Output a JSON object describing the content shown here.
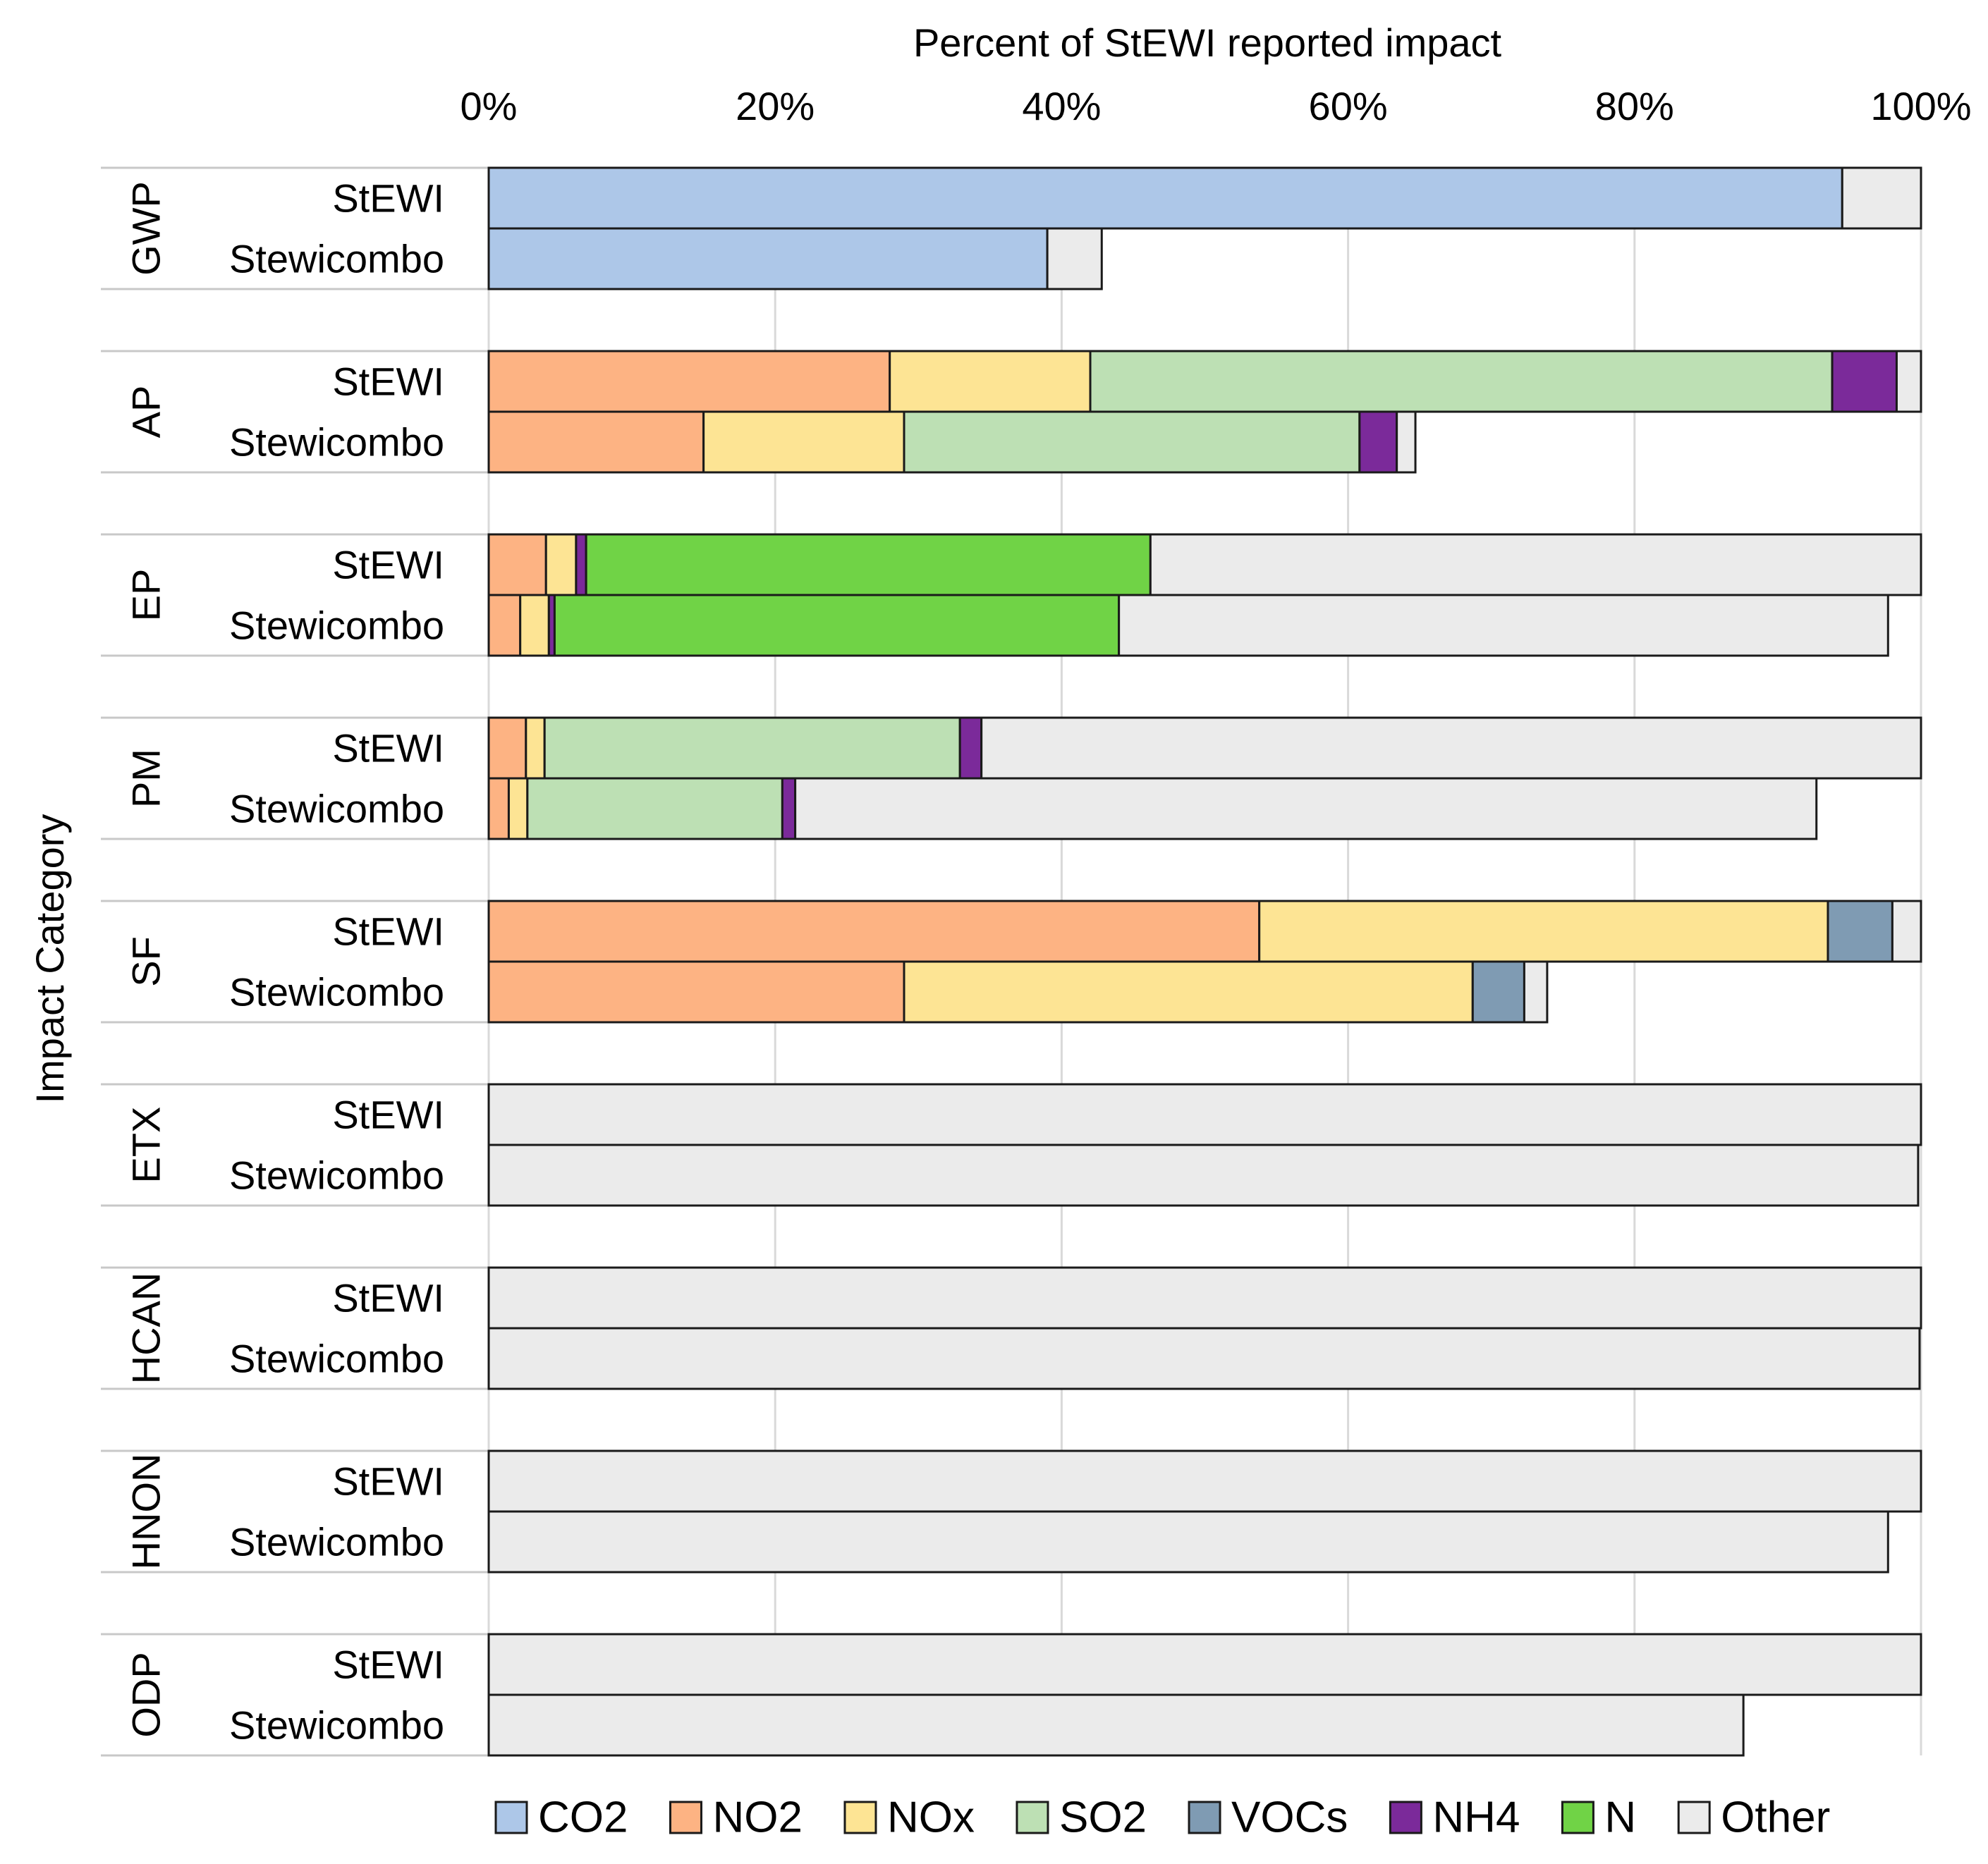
{
  "chart_data": {
    "type": "bar",
    "orientation": "horizontal",
    "stacked": true,
    "title": "",
    "xlabel": "Percent of StEWI reported impact",
    "ylabel": "Impact Category",
    "xlim": [
      0,
      100
    ],
    "x_ticks": [
      "0%",
      "20%",
      "40%",
      "60%",
      "80%",
      "100%"
    ],
    "x_axis_position": "top",
    "legend_position": "bottom",
    "grid": true,
    "series": [
      {
        "name": "CO2",
        "color": "#adc7e8"
      },
      {
        "name": "NO2",
        "color": "#fdb383"
      },
      {
        "name": "NOx",
        "color": "#fde494"
      },
      {
        "name": "SO2",
        "color": "#bde0b4"
      },
      {
        "name": "VOCs",
        "color": "#7f9bb3"
      },
      {
        "name": "NH4",
        "color": "#7b2a9a"
      },
      {
        "name": "N",
        "color": "#70d346"
      },
      {
        "name": "Other",
        "color": "#ebebeb"
      }
    ],
    "groups": [
      {
        "category": "GWP",
        "bars": [
          {
            "label": "StEWI",
            "values": {
              "CO2": 94.5,
              "Other": 5.5
            }
          },
          {
            "label": "Stewicombo",
            "values": {
              "CO2": 39.0,
              "Other": 3.8
            }
          }
        ]
      },
      {
        "category": "AP",
        "bars": [
          {
            "label": "StEWI",
            "values": {
              "NO2": 28.0,
              "NOx": 14.0,
              "SO2": 51.8,
              "NH4": 4.5,
              "Other": 1.7
            }
          },
          {
            "label": "Stewicombo",
            "values": {
              "NO2": 15.0,
              "NOx": 14.0,
              "SO2": 31.8,
              "NH4": 2.6,
              "Other": 1.3
            }
          }
        ]
      },
      {
        "category": "EP",
        "bars": [
          {
            "label": "StEWI",
            "values": {
              "NO2": 4.0,
              "NOx": 2.1,
              "NH4": 0.7,
              "N": 39.4,
              "Other": 53.8
            }
          },
          {
            "label": "Stewicombo",
            "values": {
              "NO2": 2.2,
              "NOx": 2.0,
              "NH4": 0.4,
              "N": 39.4,
              "Other": 53.7
            }
          }
        ]
      },
      {
        "category": "PM",
        "bars": [
          {
            "label": "StEWI",
            "values": {
              "NO2": 2.6,
              "NOx": 1.3,
              "SO2": 29.0,
              "NH4": 1.5,
              "Other": 65.6
            }
          },
          {
            "label": "Stewicombo",
            "values": {
              "NO2": 1.4,
              "NOx": 1.3,
              "SO2": 17.8,
              "NH4": 0.9,
              "Other": 71.3
            }
          }
        ]
      },
      {
        "category": "SF",
        "bars": [
          {
            "label": "StEWI",
            "values": {
              "NO2": 53.8,
              "NOx": 39.7,
              "VOCs": 4.5,
              "Other": 2.0
            }
          },
          {
            "label": "Stewicombo",
            "values": {
              "NO2": 29.0,
              "NOx": 39.7,
              "VOCs": 3.6,
              "Other": 1.6
            }
          }
        ]
      },
      {
        "category": "ETX",
        "bars": [
          {
            "label": "StEWI",
            "values": {
              "Other": 100.0
            }
          },
          {
            "label": "Stewicombo",
            "values": {
              "Other": 99.8
            }
          }
        ]
      },
      {
        "category": "HCAN",
        "bars": [
          {
            "label": "StEWI",
            "values": {
              "Other": 100.0
            }
          },
          {
            "label": "Stewicombo",
            "values": {
              "Other": 99.9
            }
          }
        ]
      },
      {
        "category": "HNON",
        "bars": [
          {
            "label": "StEWI",
            "values": {
              "Other": 100.0
            }
          },
          {
            "label": "Stewicombo",
            "values": {
              "Other": 97.7
            }
          }
        ]
      },
      {
        "category": "ODP",
        "bars": [
          {
            "label": "StEWI",
            "values": {
              "Other": 100.0
            }
          },
          {
            "label": "Stewicombo",
            "values": {
              "Other": 87.6
            }
          }
        ]
      }
    ]
  }
}
